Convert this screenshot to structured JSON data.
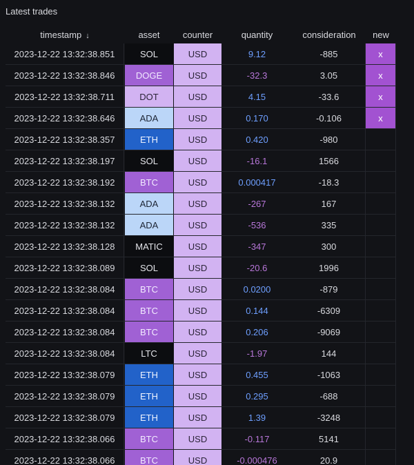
{
  "panel": {
    "title": "Latest trades"
  },
  "columns": {
    "timestamp": "timestamp",
    "asset": "asset",
    "counter": "counter",
    "quantity": "quantity",
    "consideration": "consideration",
    "new": "new",
    "sort_icon": "↓"
  },
  "colors": {
    "background": "#121317",
    "counter_bg": "#d2b3f2",
    "asset_black": "#0c0d10",
    "asset_purple": "#a061d4",
    "asset_lightblue": "#bbd6f8",
    "asset_blue": "#2262c9",
    "qty_positive": "#6e9fff",
    "qty_negative": "#b877d9",
    "new_flag": "#a252d1"
  },
  "rows": [
    {
      "timestamp": "2023-12-22 13:32:38.851",
      "asset": "SOL",
      "asset_style": "black",
      "counter": "USD",
      "quantity": "9.12",
      "qty_sign": "pos",
      "consideration": "-885",
      "new": "x"
    },
    {
      "timestamp": "2023-12-22 13:32:38.846",
      "asset": "DOGE",
      "asset_style": "purple",
      "counter": "USD",
      "quantity": "-32.3",
      "qty_sign": "neg",
      "consideration": "3.05",
      "new": "x"
    },
    {
      "timestamp": "2023-12-22 13:32:38.711",
      "asset": "DOT",
      "asset_style": "counter",
      "counter": "USD",
      "quantity": "4.15",
      "qty_sign": "pos",
      "consideration": "-33.6",
      "new": "x"
    },
    {
      "timestamp": "2023-12-22 13:32:38.646",
      "asset": "ADA",
      "asset_style": "lightblue",
      "counter": "USD",
      "quantity": "0.170",
      "qty_sign": "pos",
      "consideration": "-0.106",
      "new": "x"
    },
    {
      "timestamp": "2023-12-22 13:32:38.357",
      "asset": "ETH",
      "asset_style": "blue",
      "counter": "USD",
      "quantity": "0.420",
      "qty_sign": "pos",
      "consideration": "-980",
      "new": ""
    },
    {
      "timestamp": "2023-12-22 13:32:38.197",
      "asset": "SOL",
      "asset_style": "black",
      "counter": "USD",
      "quantity": "-16.1",
      "qty_sign": "neg",
      "consideration": "1566",
      "new": ""
    },
    {
      "timestamp": "2023-12-22 13:32:38.192",
      "asset": "BTC",
      "asset_style": "purple",
      "counter": "USD",
      "quantity": "0.000417",
      "qty_sign": "pos",
      "consideration": "-18.3",
      "new": ""
    },
    {
      "timestamp": "2023-12-22 13:32:38.132",
      "asset": "ADA",
      "asset_style": "lightblue",
      "counter": "USD",
      "quantity": "-267",
      "qty_sign": "neg",
      "consideration": "167",
      "new": ""
    },
    {
      "timestamp": "2023-12-22 13:32:38.132",
      "asset": "ADA",
      "asset_style": "lightblue",
      "counter": "USD",
      "quantity": "-536",
      "qty_sign": "neg",
      "consideration": "335",
      "new": ""
    },
    {
      "timestamp": "2023-12-22 13:32:38.128",
      "asset": "MATIC",
      "asset_style": "black",
      "counter": "USD",
      "quantity": "-347",
      "qty_sign": "neg",
      "consideration": "300",
      "new": ""
    },
    {
      "timestamp": "2023-12-22 13:32:38.089",
      "asset": "SOL",
      "asset_style": "black",
      "counter": "USD",
      "quantity": "-20.6",
      "qty_sign": "neg",
      "consideration": "1996",
      "new": ""
    },
    {
      "timestamp": "2023-12-22 13:32:38.084",
      "asset": "BTC",
      "asset_style": "purple",
      "counter": "USD",
      "quantity": "0.0200",
      "qty_sign": "pos",
      "consideration": "-879",
      "new": ""
    },
    {
      "timestamp": "2023-12-22 13:32:38.084",
      "asset": "BTC",
      "asset_style": "purple",
      "counter": "USD",
      "quantity": "0.144",
      "qty_sign": "pos",
      "consideration": "-6309",
      "new": ""
    },
    {
      "timestamp": "2023-12-22 13:32:38.084",
      "asset": "BTC",
      "asset_style": "purple",
      "counter": "USD",
      "quantity": "0.206",
      "qty_sign": "pos",
      "consideration": "-9069",
      "new": ""
    },
    {
      "timestamp": "2023-12-22 13:32:38.084",
      "asset": "LTC",
      "asset_style": "black",
      "counter": "USD",
      "quantity": "-1.97",
      "qty_sign": "neg",
      "consideration": "144",
      "new": ""
    },
    {
      "timestamp": "2023-12-22 13:32:38.079",
      "asset": "ETH",
      "asset_style": "blue",
      "counter": "USD",
      "quantity": "0.455",
      "qty_sign": "pos",
      "consideration": "-1063",
      "new": ""
    },
    {
      "timestamp": "2023-12-22 13:32:38.079",
      "asset": "ETH",
      "asset_style": "blue",
      "counter": "USD",
      "quantity": "0.295",
      "qty_sign": "pos",
      "consideration": "-688",
      "new": ""
    },
    {
      "timestamp": "2023-12-22 13:32:38.079",
      "asset": "ETH",
      "asset_style": "blue",
      "counter": "USD",
      "quantity": "1.39",
      "qty_sign": "pos",
      "consideration": "-3248",
      "new": ""
    },
    {
      "timestamp": "2023-12-22 13:32:38.066",
      "asset": "BTC",
      "asset_style": "purple",
      "counter": "USD",
      "quantity": "-0.117",
      "qty_sign": "neg",
      "consideration": "5141",
      "new": ""
    },
    {
      "timestamp": "2023-12-22 13:32:38.066",
      "asset": "BTC",
      "asset_style": "purple",
      "counter": "USD",
      "quantity": "-0.000476",
      "qty_sign": "neg",
      "consideration": "20.9",
      "new": ""
    }
  ]
}
